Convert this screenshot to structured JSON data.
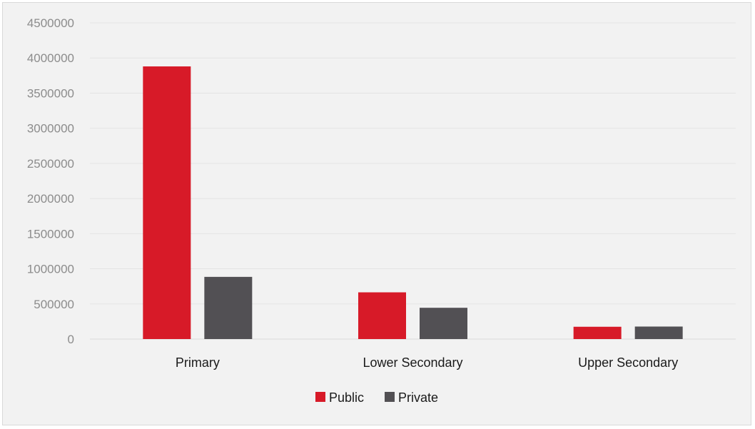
{
  "chart_data": {
    "type": "bar",
    "categories": [
      "Primary",
      "Lower Secondary",
      "Upper Secondary"
    ],
    "series": [
      {
        "name": "Public",
        "color": "#d71a28",
        "values": [
          3880000,
          665000,
          175000
        ]
      },
      {
        "name": "Private",
        "color": "#525054",
        "values": [
          885000,
          445000,
          178000
        ]
      }
    ],
    "y_ticks": [
      0,
      500000,
      1000000,
      1500000,
      2000000,
      2500000,
      3000000,
      3500000,
      4000000,
      4500000
    ],
    "ylim": [
      0,
      4500000
    ],
    "grid": true,
    "legend": "bottom-center",
    "title": "",
    "xlabel": "",
    "ylabel": ""
  },
  "colors": {
    "background": "#f2f2f2",
    "gridline": "#e4e4e4",
    "axis_text": "#8c8c8c"
  }
}
